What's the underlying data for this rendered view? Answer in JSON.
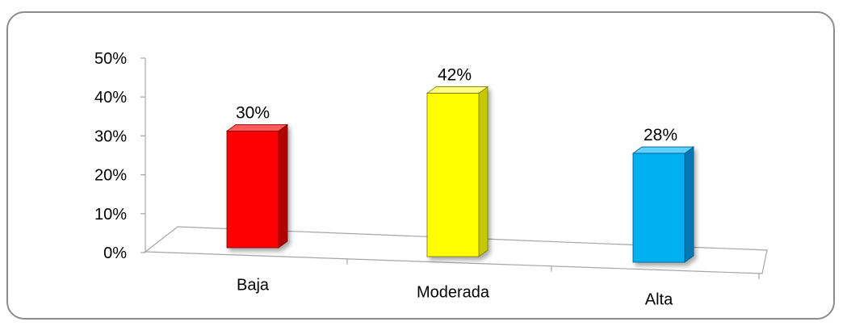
{
  "chart_data": {
    "type": "bar",
    "categories": [
      "Baja",
      "Moderada",
      "Alta"
    ],
    "values": [
      30,
      42,
      28
    ],
    "data_labels": [
      "30%",
      "42%",
      "28%"
    ],
    "y_ticks": [
      "0%",
      "10%",
      "20%",
      "30%",
      "40%",
      "50%"
    ],
    "ylim": [
      0,
      50
    ],
    "title": "",
    "xlabel": "",
    "ylabel": "",
    "grid": false,
    "legend": "none",
    "colors": [
      {
        "front": "#ff0000",
        "side": "#b00000",
        "top": "#ff5a5a",
        "stroke": "#7a0000"
      },
      {
        "front": "#ffff00",
        "side": "#c8c800",
        "top": "#ffff80",
        "stroke": "#7a7a00"
      },
      {
        "front": "#00b0f0",
        "side": "#0078b4",
        "top": "#5fd0ff",
        "stroke": "#005a8a"
      }
    ]
  }
}
